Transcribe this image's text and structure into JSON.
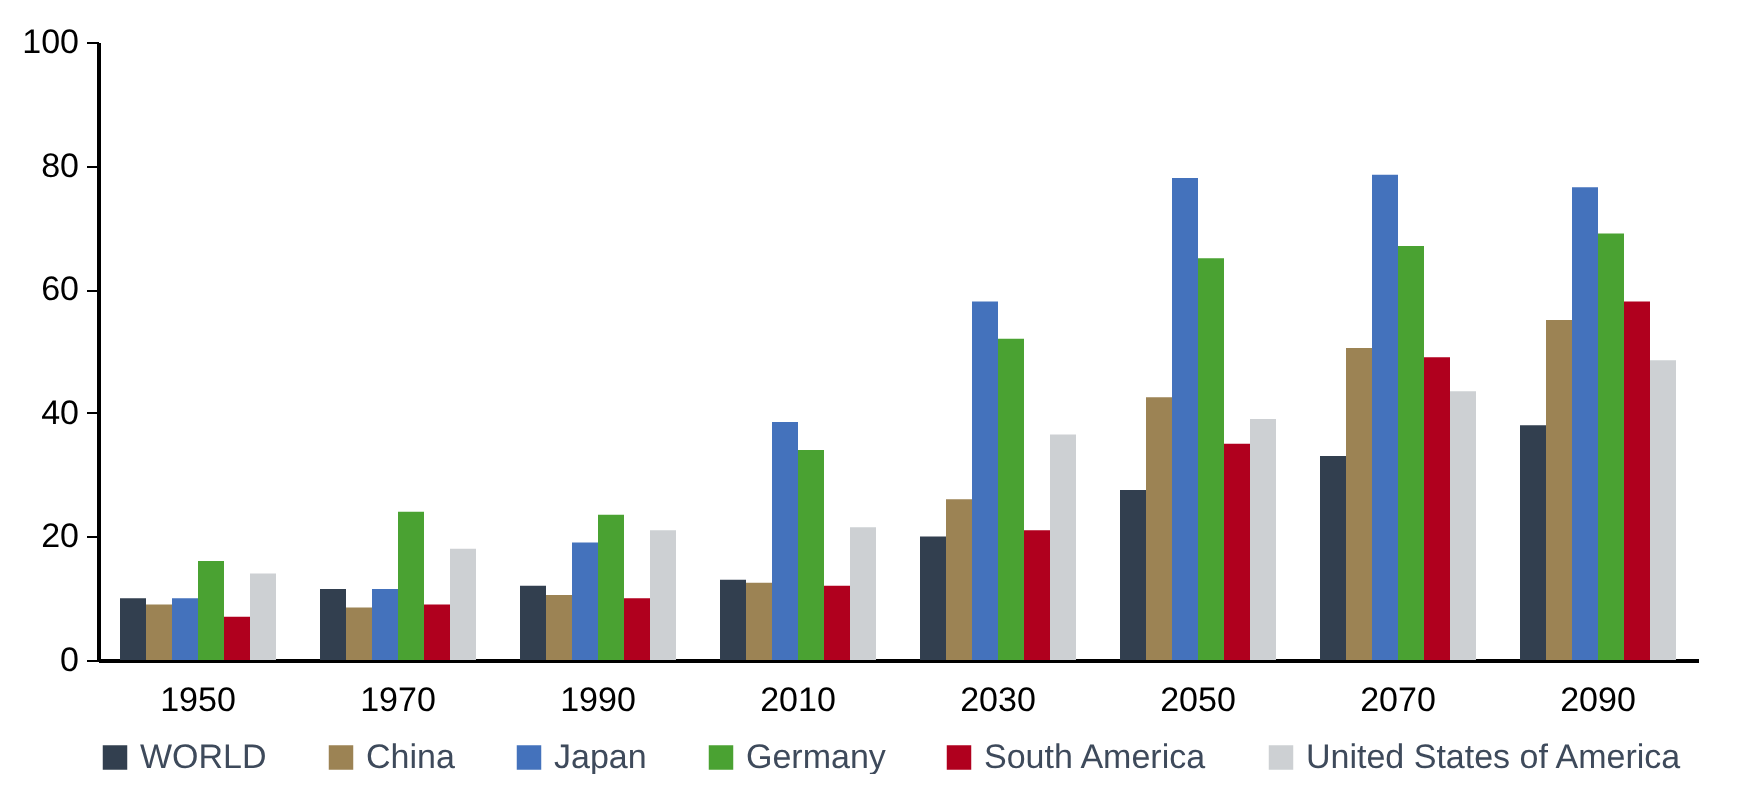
{
  "chart_data": {
    "type": "bar",
    "categories": [
      "1950",
      "1970",
      "1990",
      "2010",
      "2030",
      "2050",
      "2070",
      "2090"
    ],
    "series": [
      {
        "name": "WORLD",
        "color": "#323f4f",
        "values": [
          10,
          11.5,
          12,
          13,
          20,
          27.5,
          33,
          38
        ]
      },
      {
        "name": "China",
        "color": "#9c8354",
        "values": [
          9,
          8.5,
          10.5,
          12.5,
          26,
          42.5,
          50.5,
          55
        ]
      },
      {
        "name": "Japan",
        "color": "#4472bc",
        "values": [
          10,
          11.5,
          19,
          38.5,
          58,
          78,
          78.5,
          76.5
        ]
      },
      {
        "name": "Germany",
        "color": "#4aa232",
        "values": [
          16,
          24,
          23.5,
          34,
          52,
          65,
          67,
          69
        ]
      },
      {
        "name": "South America",
        "color": "#b0001e",
        "values": [
          7,
          9,
          10,
          12,
          21,
          35,
          49,
          58
        ]
      },
      {
        "name": "United States of America",
        "color": "#cdd0d3",
        "values": [
          14,
          18,
          21,
          21.5,
          36.5,
          39,
          43.5,
          48.5
        ]
      }
    ],
    "ylim": [
      0,
      100
    ],
    "yticks": [
      0,
      20,
      40,
      60,
      80,
      100
    ],
    "grid": false,
    "legend": "bottom"
  }
}
